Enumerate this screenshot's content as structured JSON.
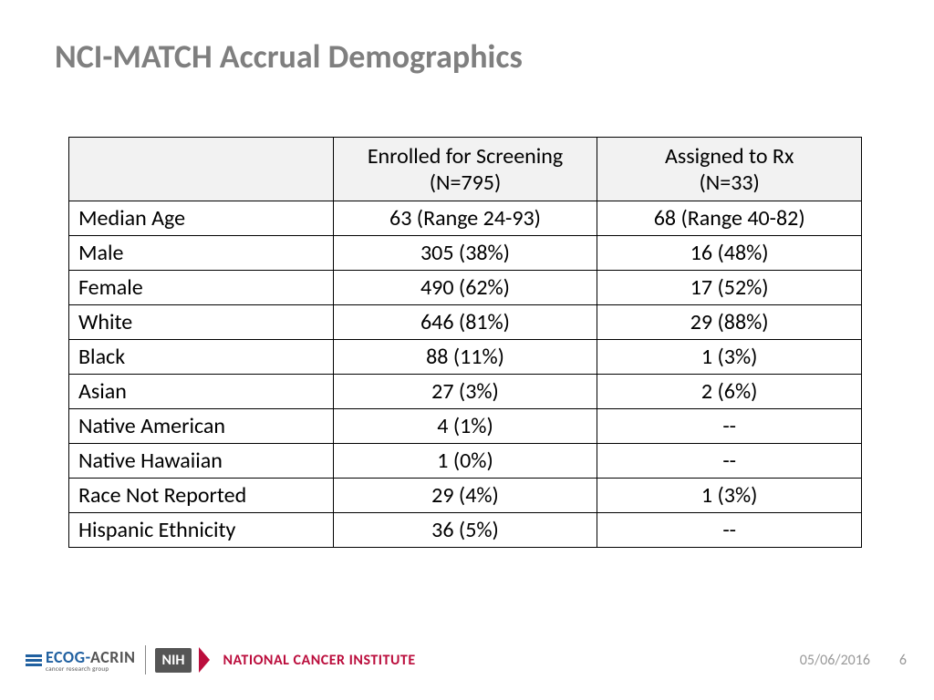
{
  "title": "NCI-MATCH Accrual Demographics",
  "table": {
    "headers": {
      "blank": "",
      "col1_line1": "Enrolled for Screening",
      "col1_line2": "(N=795)",
      "col2_line1": "Assigned to Rx",
      "col2_line2": "(N=33)"
    },
    "rows": [
      {
        "label": "Median Age",
        "screening": "63 (Range 24-93)",
        "rx": "68 (Range 40-82)"
      },
      {
        "label": "Male",
        "screening": "305 (38%)",
        "rx": "16 (48%)"
      },
      {
        "label": "Female",
        "screening": "490 (62%)",
        "rx": "17 (52%)"
      },
      {
        "label": "White",
        "screening": "646 (81%)",
        "rx": "29 (88%)"
      },
      {
        "label": "Black",
        "screening": "88 (11%)",
        "rx": "1 (3%)"
      },
      {
        "label": "Asian",
        "screening": "27 (3%)",
        "rx": "2 (6%)"
      },
      {
        "label": "Native American",
        "screening": "4 (1%)",
        "rx": "--"
      },
      {
        "label": "Native Hawaiian",
        "screening": "1 (0%)",
        "rx": "--"
      },
      {
        "label": "Race Not Reported",
        "screening": "29 (4%)",
        "rx": "1 (3%)"
      },
      {
        "label": "Hispanic Ethnicity",
        "screening": "36 (5%)",
        "rx": "--"
      }
    ],
    "header_bg": "#f2f2f2",
    "border_color": "#000000",
    "font_size": 24
  },
  "footer": {
    "ecog_main": "ECOG",
    "ecog_dash": "-",
    "acrin": "ACRIN",
    "ecog_sub": "cancer research group",
    "nih": "NIH",
    "nci": "NATIONAL CANCER INSTITUTE",
    "date": "05/06/2016",
    "page": "6"
  },
  "colors": {
    "title": "#7f7f7f",
    "nci_red": "#bb0e3d",
    "ecog_blue": "#2060a0",
    "footer_gray": "#9a9a9a"
  }
}
